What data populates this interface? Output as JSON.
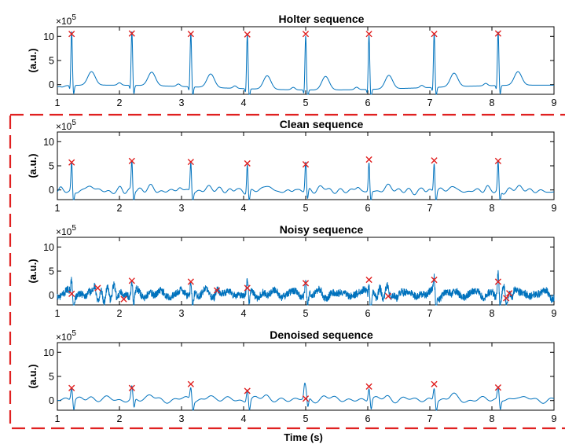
{
  "figure": {
    "xlabel": "Time (s)",
    "dashed_box_color": "#e02020"
  },
  "chart_data": [
    {
      "type": "line",
      "title": "Holter sequence",
      "ylabel": "(a.u.)",
      "y_multiplier": "×10",
      "y_multiplier_exp": "5",
      "xlim": [
        1,
        9
      ],
      "ylim": [
        -2,
        12
      ],
      "xticks": [
        1,
        2,
        3,
        4,
        5,
        6,
        7,
        8,
        9
      ],
      "yticks": [
        0,
        5,
        10
      ],
      "line_color": "#0072bd",
      "marker_color": "#e02020",
      "r_peaks": [
        [
          1.23,
          10.5
        ],
        [
          2.2,
          10.6
        ],
        [
          3.15,
          10.5
        ],
        [
          4.06,
          10.4
        ],
        [
          5.0,
          10.5
        ],
        [
          6.02,
          10.5
        ],
        [
          7.07,
          10.5
        ],
        [
          8.1,
          10.6
        ]
      ],
      "series_shape": "holter"
    },
    {
      "type": "line",
      "title": "Clean sequence",
      "ylabel": "(a.u.)",
      "y_multiplier": "×10",
      "y_multiplier_exp": "5",
      "xlim": [
        1,
        9
      ],
      "ylim": [
        -2,
        12
      ],
      "xticks": [
        1,
        2,
        3,
        4,
        5,
        6,
        7,
        8,
        9
      ],
      "yticks": [
        0,
        5,
        10
      ],
      "line_color": "#0072bd",
      "marker_color": "#e02020",
      "r_peaks": [
        [
          1.23,
          5.7
        ],
        [
          2.2,
          6.0
        ],
        [
          3.15,
          5.8
        ],
        [
          4.06,
          5.5
        ],
        [
          5.0,
          5.3
        ],
        [
          6.02,
          6.3
        ],
        [
          7.07,
          6.1
        ],
        [
          8.1,
          6.0
        ]
      ],
      "series_shape": "clean"
    },
    {
      "type": "line",
      "title": "Noisy sequence",
      "ylabel": "(a.u.)",
      "y_multiplier": "×10",
      "y_multiplier_exp": "5",
      "xlim": [
        1,
        9
      ],
      "ylim": [
        -2,
        12
      ],
      "xticks": [
        1,
        2,
        3,
        4,
        5,
        6,
        7,
        8,
        9
      ],
      "yticks": [
        0,
        5,
        10
      ],
      "line_color": "#0072bd",
      "marker_color": "#e02020",
      "r_peaks": [
        [
          1.23,
          0.3
        ],
        [
          1.65,
          1.5
        ],
        [
          2.07,
          -0.8
        ],
        [
          2.2,
          3.0
        ],
        [
          3.15,
          2.8
        ],
        [
          3.57,
          1.0
        ],
        [
          4.06,
          1.5
        ],
        [
          5.0,
          2.5
        ],
        [
          6.02,
          3.2
        ],
        [
          6.33,
          -0.2
        ],
        [
          7.07,
          3.2
        ],
        [
          8.1,
          2.8
        ],
        [
          8.23,
          -0.6
        ],
        [
          8.28,
          0.4
        ]
      ],
      "series_shape": "noisy"
    },
    {
      "type": "line",
      "title": "Denoised sequence",
      "ylabel": "(a.u.)",
      "y_multiplier": "×10",
      "y_multiplier_exp": "5",
      "xlim": [
        1,
        9
      ],
      "ylim": [
        -2,
        12
      ],
      "xticks": [
        1,
        2,
        3,
        4,
        5,
        6,
        7,
        8,
        9
      ],
      "yticks": [
        0,
        5,
        10
      ],
      "line_color": "#0072bd",
      "marker_color": "#e02020",
      "r_peaks": [
        [
          1.23,
          2.6
        ],
        [
          2.2,
          2.6
        ],
        [
          3.15,
          3.4
        ],
        [
          4.06,
          2.0
        ],
        [
          5.0,
          0.4
        ],
        [
          6.02,
          2.9
        ],
        [
          7.07,
          3.4
        ],
        [
          8.1,
          2.7
        ]
      ],
      "series_shape": "denoised"
    }
  ]
}
